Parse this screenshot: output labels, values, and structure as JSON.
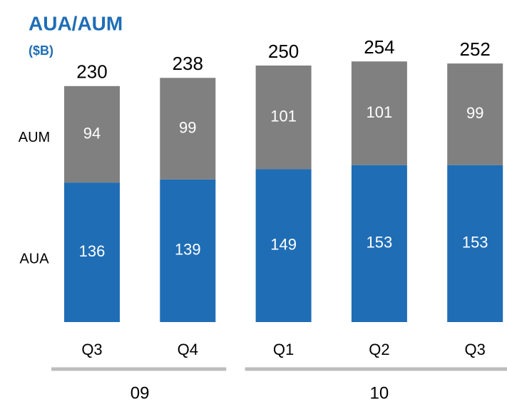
{
  "chart_data": {
    "type": "stacked_bar",
    "title": "AUA/AUM",
    "subtitle": "($B)",
    "categories": [
      "Q3",
      "Q4",
      "Q1",
      "Q2",
      "Q3"
    ],
    "groups": [
      {
        "name": "09",
        "count": 2
      },
      {
        "name": "10",
        "count": 3
      }
    ],
    "series": [
      {
        "name": "AUA",
        "color": "#1f6db5",
        "values": [
          136,
          139,
          149,
          153,
          153
        ]
      },
      {
        "name": "AUM",
        "color": "#808080",
        "values": [
          94,
          99,
          101,
          101,
          99
        ]
      }
    ],
    "totals": [
      230,
      238,
      250,
      254,
      252
    ]
  }
}
